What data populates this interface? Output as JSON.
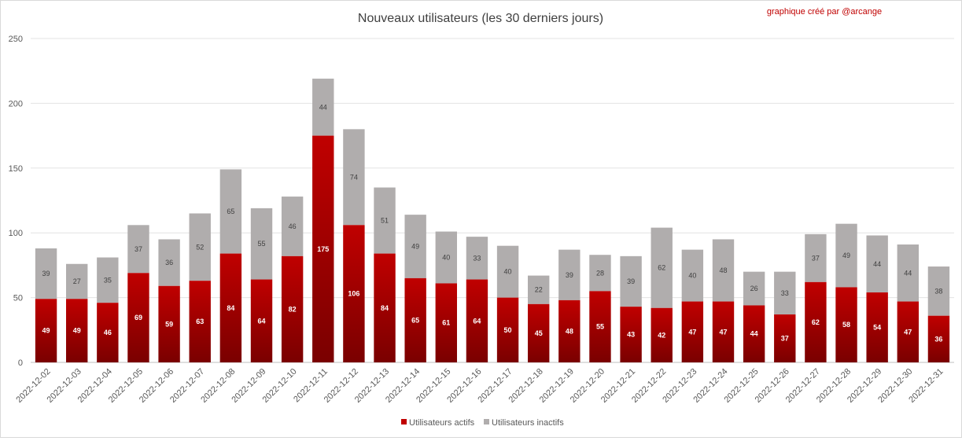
{
  "chart_data": {
    "type": "bar",
    "stacked": true,
    "title": "Nouveaux utilisateurs (les 30 derniers jours)",
    "credit": "graphique créé par @arcange",
    "categories": [
      "2022-12-02",
      "2022-12-03",
      "2022-12-04",
      "2022-12-05",
      "2022-12-06",
      "2022-12-07",
      "2022-12-08",
      "2022-12-09",
      "2022-12-10",
      "2022-12-11",
      "2022-12-12",
      "2022-12-13",
      "2022-12-14",
      "2022-12-15",
      "2022-12-16",
      "2022-12-17",
      "2022-12-18",
      "2022-12-19",
      "2022-12-20",
      "2022-12-21",
      "2022-12-22",
      "2022-12-23",
      "2022-12-24",
      "2022-12-25",
      "2022-12-26",
      "2022-12-27",
      "2022-12-28",
      "2022-12-29",
      "2022-12-30",
      "2022-12-31"
    ],
    "series": [
      {
        "name": "Utilisateurs actifs",
        "color": "#c00000",
        "values": [
          49,
          49,
          46,
          69,
          59,
          63,
          84,
          64,
          82,
          175,
          106,
          84,
          65,
          61,
          64,
          50,
          45,
          48,
          55,
          43,
          42,
          47,
          47,
          44,
          37,
          62,
          58,
          54,
          47,
          36
        ]
      },
      {
        "name": "Utilisateurs inactifs",
        "color": "#b0adad",
        "values": [
          39,
          27,
          35,
          37,
          36,
          52,
          65,
          55,
          46,
          44,
          74,
          51,
          49,
          40,
          33,
          40,
          22,
          39,
          28,
          39,
          62,
          40,
          48,
          26,
          33,
          37,
          49,
          44,
          44,
          38
        ]
      }
    ],
    "ylim": [
      0,
      250
    ],
    "yticks": [
      0,
      50,
      100,
      150,
      200,
      250
    ],
    "grid": true,
    "legend": "bottom"
  }
}
